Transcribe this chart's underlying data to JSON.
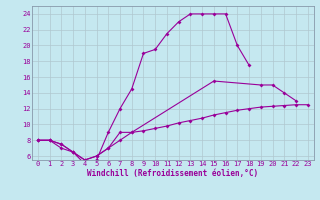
{
  "xlabel": "Windchill (Refroidissement éolien,°C)",
  "bg_color": "#c5e8f0",
  "line_color": "#990099",
  "grid_color": "#b0c8d0",
  "xticks": [
    0,
    1,
    2,
    3,
    4,
    5,
    6,
    7,
    8,
    9,
    10,
    11,
    12,
    13,
    14,
    15,
    16,
    17,
    18,
    19,
    20,
    21,
    22,
    23
  ],
  "yticks": [
    6,
    8,
    10,
    12,
    14,
    16,
    18,
    20,
    22,
    24
  ],
  "xlim": [
    -0.5,
    23.5
  ],
  "ylim": [
    5.5,
    25.0
  ],
  "line1_x": [
    0,
    1,
    2,
    3,
    4,
    5,
    6,
    7,
    8,
    9,
    10,
    11,
    12,
    13,
    14,
    15,
    16,
    17,
    18
  ],
  "line1_y": [
    8,
    8,
    7,
    6.5,
    5,
    5.5,
    9,
    12,
    14.5,
    19,
    19.5,
    21.5,
    23,
    24,
    24,
    24,
    24,
    20,
    17.5
  ],
  "line2_x": [
    0,
    1,
    2,
    3,
    4,
    5,
    6,
    7,
    8,
    15,
    19,
    20,
    21,
    22
  ],
  "line2_y": [
    8,
    8,
    7.5,
    6.5,
    5.5,
    6,
    7,
    9,
    9,
    15.5,
    15,
    15,
    14,
    13
  ],
  "line3_x": [
    0,
    1,
    2,
    3,
    4,
    5,
    6,
    7,
    8,
    9,
    10,
    11,
    12,
    13,
    14,
    15,
    16,
    17,
    18,
    19,
    20,
    21,
    22,
    23
  ],
  "line3_y": [
    8,
    8,
    7.5,
    6.5,
    5.5,
    6,
    7,
    8,
    9,
    9.2,
    9.5,
    9.8,
    10.2,
    10.5,
    10.8,
    11.2,
    11.5,
    11.8,
    12.0,
    12.2,
    12.3,
    12.4,
    12.5,
    12.5
  ],
  "marker": "D",
  "marker_size": 2,
  "linewidth": 0.8,
  "tick_fontsize": 5,
  "xlabel_fontsize": 5.5
}
